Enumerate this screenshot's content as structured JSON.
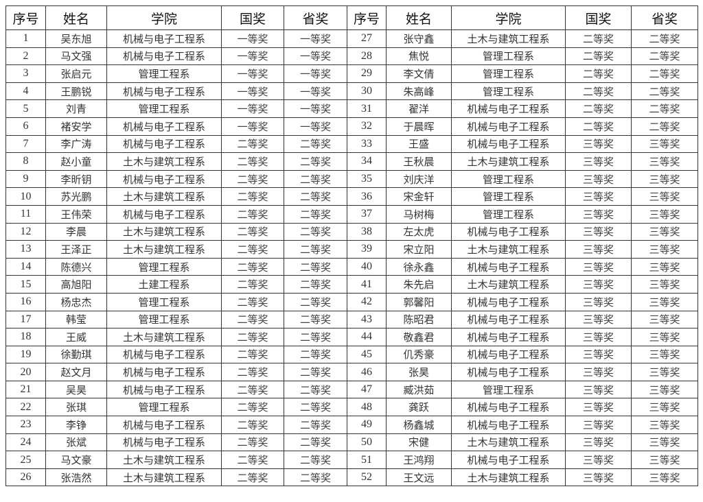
{
  "headers": [
    "序号",
    "姓名",
    "学院",
    "国奖",
    "省奖"
  ],
  "records": [
    [
      "1",
      "吴东旭",
      "机械与电子工程系",
      "一等奖",
      "一等奖"
    ],
    [
      "2",
      "马文强",
      "机械与电子工程系",
      "一等奖",
      "一等奖"
    ],
    [
      "3",
      "张启元",
      "管理工程系",
      "一等奖",
      "一等奖"
    ],
    [
      "4",
      "王鹏锐",
      "机械与电子工程系",
      "一等奖",
      "一等奖"
    ],
    [
      "5",
      "刘青",
      "管理工程系",
      "一等奖",
      "一等奖"
    ],
    [
      "6",
      "褚安学",
      "机械与电子工程系",
      "一等奖",
      "一等奖"
    ],
    [
      "7",
      "李广涛",
      "机械与电子工程系",
      "二等奖",
      "二等奖"
    ],
    [
      "8",
      "赵小童",
      "土木与建筑工程系",
      "二等奖",
      "二等奖"
    ],
    [
      "9",
      "李昕钥",
      "机械与电子工程系",
      "二等奖",
      "二等奖"
    ],
    [
      "10",
      "苏光鹏",
      "土木与建筑工程系",
      "二等奖",
      "二等奖"
    ],
    [
      "11",
      "王伟荣",
      "机械与电子工程系",
      "二等奖",
      "二等奖"
    ],
    [
      "12",
      "李晨",
      "土木与建筑工程系",
      "二等奖",
      "二等奖"
    ],
    [
      "13",
      "王泽正",
      "土木与建筑工程系",
      "二等奖",
      "二等奖"
    ],
    [
      "14",
      "陈德兴",
      "管理工程系",
      "二等奖",
      "二等奖"
    ],
    [
      "15",
      "高旭阳",
      "土建工程系",
      "二等奖",
      "二等奖"
    ],
    [
      "16",
      "杨忠杰",
      "管理工程系",
      "二等奖",
      "二等奖"
    ],
    [
      "17",
      "韩莹",
      "管理工程系",
      "二等奖",
      "二等奖"
    ],
    [
      "18",
      "王威",
      "土木与建筑工程系",
      "二等奖",
      "二等奖"
    ],
    [
      "19",
      "徐勤琪",
      "机械与电子工程系",
      "二等奖",
      "二等奖"
    ],
    [
      "20",
      "赵文月",
      "机械与电子工程系",
      "二等奖",
      "二等奖"
    ],
    [
      "21",
      "吴昊",
      "机械与电子工程系",
      "二等奖",
      "二等奖"
    ],
    [
      "22",
      "张琪",
      "管理工程系",
      "二等奖",
      "二等奖"
    ],
    [
      "23",
      "李铮",
      "机械与电子工程系",
      "二等奖",
      "二等奖"
    ],
    [
      "24",
      "张斌",
      "机械与电子工程系",
      "二等奖",
      "二等奖"
    ],
    [
      "25",
      "马文豪",
      "土木与建筑工程系",
      "二等奖",
      "二等奖"
    ],
    [
      "26",
      "张浩然",
      "土木与建筑工程系",
      "二等奖",
      "二等奖"
    ],
    [
      "27",
      "张守鑫",
      "土木与建筑工程系",
      "二等奖",
      "二等奖"
    ],
    [
      "28",
      "焦悦",
      "管理工程系",
      "二等奖",
      "二等奖"
    ],
    [
      "29",
      "李文倩",
      "管理工程系",
      "二等奖",
      "二等奖"
    ],
    [
      "30",
      "朱高峰",
      "管理工程系",
      "二等奖",
      "二等奖"
    ],
    [
      "31",
      "翟洋",
      "机械与电子工程系",
      "二等奖",
      "二等奖"
    ],
    [
      "32",
      "于晨晖",
      "机械与电子工程系",
      "二等奖",
      "二等奖"
    ],
    [
      "33",
      "王盛",
      "机械与电子工程系",
      "三等奖",
      "三等奖"
    ],
    [
      "34",
      "王秋晨",
      "土木与建筑工程系",
      "三等奖",
      "三等奖"
    ],
    [
      "35",
      "刘庆洋",
      "管理工程系",
      "三等奖",
      "三等奖"
    ],
    [
      "36",
      "宋金轩",
      "管理工程系",
      "三等奖",
      "三等奖"
    ],
    [
      "37",
      "马树梅",
      "管理工程系",
      "三等奖",
      "三等奖"
    ],
    [
      "38",
      "左太虎",
      "机械与电子工程系",
      "三等奖",
      "三等奖"
    ],
    [
      "39",
      "宋立阳",
      "土木与建筑工程系",
      "三等奖",
      "三等奖"
    ],
    [
      "40",
      "徐永鑫",
      "机械与电子工程系",
      "三等奖",
      "三等奖"
    ],
    [
      "41",
      "朱先启",
      "土木与建筑工程系",
      "三等奖",
      "三等奖"
    ],
    [
      "42",
      "郭馨阳",
      "机械与电子工程系",
      "三等奖",
      "三等奖"
    ],
    [
      "43",
      "陈昭君",
      "机械与电子工程系",
      "三等奖",
      "三等奖"
    ],
    [
      "44",
      "敬鑫君",
      "机械与电子工程系",
      "三等奖",
      "三等奖"
    ],
    [
      "45",
      "仉秀豪",
      "机械与电子工程系",
      "三等奖",
      "三等奖"
    ],
    [
      "46",
      "张昊",
      "机械与电子工程系",
      "三等奖",
      "三等奖"
    ],
    [
      "47",
      "臧洪茹",
      "管理工程系",
      "三等奖",
      "三等奖"
    ],
    [
      "48",
      "龚跃",
      "机械与电子工程系",
      "三等奖",
      "三等奖"
    ],
    [
      "49",
      "杨鑫城",
      "机械与电子工程系",
      "三等奖",
      "三等奖"
    ],
    [
      "50",
      "宋健",
      "土木与建筑工程系",
      "三等奖",
      "三等奖"
    ],
    [
      "51",
      "王鸿翔",
      "机械与电子工程系",
      "三等奖",
      "三等奖"
    ],
    [
      "52",
      "王文远",
      "土木与建筑工程系",
      "三等奖",
      "三等奖"
    ]
  ]
}
